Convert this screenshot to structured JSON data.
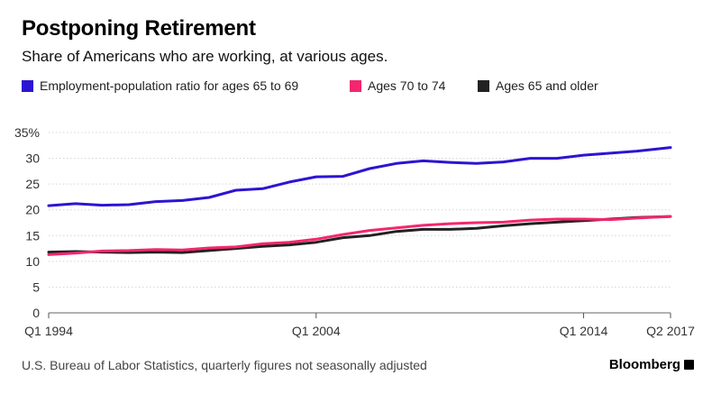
{
  "header": {
    "title": "Postponing Retirement",
    "subtitle": "Share of Americans who are working, at various ages."
  },
  "footer": {
    "source": "U.S. Bureau of Labor Statistics, quarterly figures not seasonally adjusted",
    "brand": "Bloomberg",
    "brand_icon": "bloomberg-terminal-icon"
  },
  "chart_data": {
    "type": "line",
    "title": "Postponing Retirement",
    "subtitle": "Share of Americans who are working, at various ages.",
    "xlabel": "",
    "ylabel": "",
    "x_range": [
      "Q1 1994",
      "Q2 2017"
    ],
    "ylim": [
      0,
      35
    ],
    "y_ticks": [
      0,
      5,
      10,
      15,
      20,
      25,
      30,
      35
    ],
    "y_tick_labels": [
      "0",
      "5",
      "10",
      "15",
      "20",
      "25",
      "30",
      "35%"
    ],
    "x_tick_labels": [
      "Q1 1994",
      "Q1 2004",
      "Q1 2014",
      "Q2 2017"
    ],
    "grid": "horizontal",
    "legend_position": "top",
    "series": [
      {
        "name": "Employment-population ratio for ages 65 to 69",
        "color": "#2d14d2",
        "points": [
          [
            "1994",
            20.8
          ],
          [
            "1995",
            21.2
          ],
          [
            "1996",
            20.9
          ],
          [
            "1997",
            21.0
          ],
          [
            "1998",
            21.6
          ],
          [
            "1999",
            21.8
          ],
          [
            "2000",
            22.4
          ],
          [
            "2001",
            23.8
          ],
          [
            "2002",
            24.1
          ],
          [
            "2003",
            25.4
          ],
          [
            "2004",
            26.4
          ],
          [
            "2005",
            26.5
          ],
          [
            "2006",
            28.0
          ],
          [
            "2007",
            29.0
          ],
          [
            "2008",
            29.5
          ],
          [
            "2009",
            29.2
          ],
          [
            "2010",
            29.0
          ],
          [
            "2011",
            29.3
          ],
          [
            "2012",
            30.0
          ],
          [
            "2013",
            30.0
          ],
          [
            "2014",
            30.6
          ],
          [
            "2015",
            31.0
          ],
          [
            "2016",
            31.4
          ],
          [
            "Q2 2017",
            32.1
          ]
        ]
      },
      {
        "name": "Ages 70 to 74",
        "color": "#f4266f",
        "points": [
          [
            "1994",
            11.3
          ],
          [
            "1995",
            11.6
          ],
          [
            "1996",
            12.0
          ],
          [
            "1997",
            12.1
          ],
          [
            "1998",
            12.3
          ],
          [
            "1999",
            12.2
          ],
          [
            "2000",
            12.6
          ],
          [
            "2001",
            12.8
          ],
          [
            "2002",
            13.4
          ],
          [
            "2003",
            13.7
          ],
          [
            "2004",
            14.3
          ],
          [
            "2005",
            15.2
          ],
          [
            "2006",
            16.0
          ],
          [
            "2007",
            16.5
          ],
          [
            "2008",
            17.0
          ],
          [
            "2009",
            17.3
          ],
          [
            "2010",
            17.5
          ],
          [
            "2011",
            17.6
          ],
          [
            "2012",
            18.0
          ],
          [
            "2013",
            18.2
          ],
          [
            "2014",
            18.2
          ],
          [
            "2015",
            18.1
          ],
          [
            "2016",
            18.4
          ],
          [
            "Q2 2017",
            18.7
          ]
        ]
      },
      {
        "name": "Ages 65 and older",
        "color": "#222222",
        "points": [
          [
            "1994",
            11.8
          ],
          [
            "1995",
            11.9
          ],
          [
            "1996",
            11.8
          ],
          [
            "1997",
            11.7
          ],
          [
            "1998",
            11.8
          ],
          [
            "1999",
            11.7
          ],
          [
            "2000",
            12.1
          ],
          [
            "2001",
            12.5
          ],
          [
            "2002",
            12.9
          ],
          [
            "2003",
            13.2
          ],
          [
            "2004",
            13.7
          ],
          [
            "2005",
            14.6
          ],
          [
            "2006",
            15.0
          ],
          [
            "2007",
            15.8
          ],
          [
            "2008",
            16.2
          ],
          [
            "2009",
            16.2
          ],
          [
            "2010",
            16.4
          ],
          [
            "2011",
            16.9
          ],
          [
            "2012",
            17.3
          ],
          [
            "2013",
            17.6
          ],
          [
            "2014",
            17.9
          ],
          [
            "2015",
            18.2
          ],
          [
            "2016",
            18.5
          ],
          [
            "Q2 2017",
            18.7
          ]
        ]
      }
    ]
  }
}
